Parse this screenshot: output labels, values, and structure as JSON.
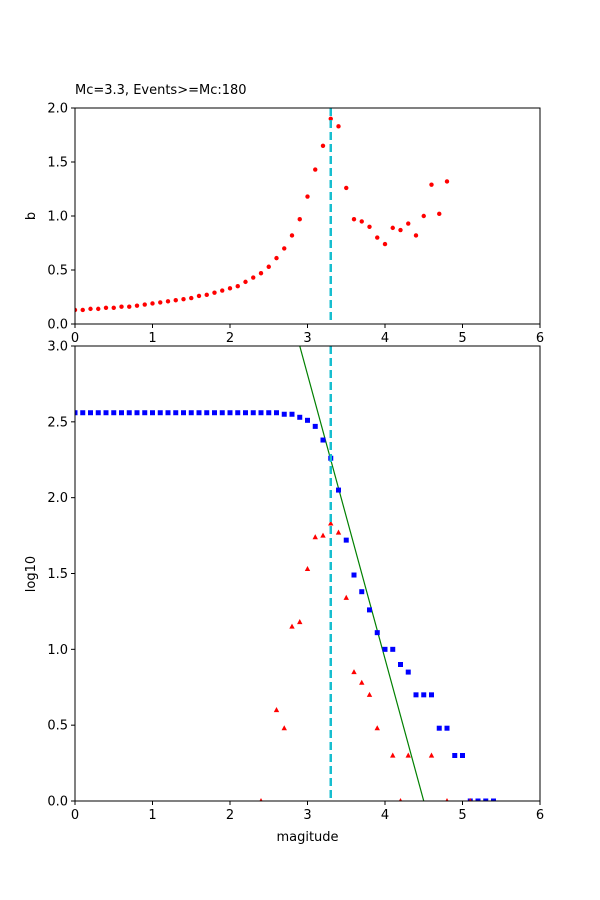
{
  "chart_data": [
    {
      "type": "scatter",
      "title": "Mc=3.3, Events>=Mc:180",
      "xlabel": "",
      "ylabel": "b",
      "xlim": [
        0,
        6
      ],
      "ylim": [
        0,
        2.0
      ],
      "xticks": [
        "0",
        "1",
        "2",
        "3",
        "4",
        "5",
        "6"
      ],
      "yticks": [
        "0.0",
        "0.5",
        "1.0",
        "1.5",
        "2.0"
      ],
      "grid": false,
      "vline": {
        "x": 3.3,
        "color": "#17becf",
        "style": "dashed"
      },
      "series": [
        {
          "marker": "circle",
          "color": "#ff0000",
          "points": [
            [
              0.0,
              0.13
            ],
            [
              0.1,
              0.13
            ],
            [
              0.2,
              0.14
            ],
            [
              0.3,
              0.14
            ],
            [
              0.4,
              0.15
            ],
            [
              0.5,
              0.15
            ],
            [
              0.6,
              0.16
            ],
            [
              0.7,
              0.16
            ],
            [
              0.8,
              0.17
            ],
            [
              0.9,
              0.18
            ],
            [
              1.0,
              0.19
            ],
            [
              1.1,
              0.2
            ],
            [
              1.2,
              0.21
            ],
            [
              1.3,
              0.22
            ],
            [
              1.4,
              0.23
            ],
            [
              1.5,
              0.24
            ],
            [
              1.6,
              0.26
            ],
            [
              1.7,
              0.27
            ],
            [
              1.8,
              0.29
            ],
            [
              1.9,
              0.31
            ],
            [
              2.0,
              0.33
            ],
            [
              2.1,
              0.35
            ],
            [
              2.2,
              0.39
            ],
            [
              2.3,
              0.43
            ],
            [
              2.4,
              0.47
            ],
            [
              2.5,
              0.53
            ],
            [
              2.6,
              0.61
            ],
            [
              2.7,
              0.7
            ],
            [
              2.8,
              0.82
            ],
            [
              2.9,
              0.97
            ],
            [
              3.0,
              1.18
            ],
            [
              3.1,
              1.43
            ],
            [
              3.2,
              1.65
            ],
            [
              3.3,
              1.9
            ],
            [
              3.4,
              1.83
            ],
            [
              3.5,
              1.26
            ],
            [
              3.6,
              0.97
            ],
            [
              3.7,
              0.95
            ],
            [
              3.8,
              0.9
            ],
            [
              3.9,
              0.8
            ],
            [
              4.0,
              0.74
            ],
            [
              4.1,
              0.89
            ],
            [
              4.2,
              0.87
            ],
            [
              4.3,
              0.93
            ],
            [
              4.4,
              0.82
            ],
            [
              4.5,
              1.0
            ],
            [
              4.6,
              1.29
            ],
            [
              4.7,
              1.02
            ],
            [
              4.8,
              1.32
            ]
          ]
        }
      ]
    },
    {
      "type": "scatter",
      "title": "",
      "xlabel": "magitude",
      "ylabel": "log10",
      "xlim": [
        0,
        6
      ],
      "ylim": [
        0,
        3.0
      ],
      "xticks": [
        "0",
        "1",
        "2",
        "3",
        "4",
        "5",
        "6"
      ],
      "yticks": [
        "0.0",
        "0.5",
        "1.0",
        "1.5",
        "2.0",
        "2.5",
        "3.0"
      ],
      "grid": false,
      "vline": {
        "x": 3.3,
        "color": "#17becf",
        "style": "dashed"
      },
      "fit_line": {
        "color": "#008000",
        "points": [
          [
            2.9,
            3.0
          ],
          [
            4.5,
            0.0
          ]
        ]
      },
      "series": [
        {
          "marker": "square",
          "color": "#0000ff",
          "points": [
            [
              0.0,
              2.56
            ],
            [
              0.1,
              2.56
            ],
            [
              0.2,
              2.56
            ],
            [
              0.3,
              2.56
            ],
            [
              0.4,
              2.56
            ],
            [
              0.5,
              2.56
            ],
            [
              0.6,
              2.56
            ],
            [
              0.7,
              2.56
            ],
            [
              0.8,
              2.56
            ],
            [
              0.9,
              2.56
            ],
            [
              1.0,
              2.56
            ],
            [
              1.1,
              2.56
            ],
            [
              1.2,
              2.56
            ],
            [
              1.3,
              2.56
            ],
            [
              1.4,
              2.56
            ],
            [
              1.5,
              2.56
            ],
            [
              1.6,
              2.56
            ],
            [
              1.7,
              2.56
            ],
            [
              1.8,
              2.56
            ],
            [
              1.9,
              2.56
            ],
            [
              2.0,
              2.56
            ],
            [
              2.1,
              2.56
            ],
            [
              2.2,
              2.56
            ],
            [
              2.3,
              2.56
            ],
            [
              2.4,
              2.56
            ],
            [
              2.5,
              2.56
            ],
            [
              2.6,
              2.56
            ],
            [
              2.7,
              2.55
            ],
            [
              2.8,
              2.55
            ],
            [
              2.9,
              2.53
            ],
            [
              3.0,
              2.51
            ],
            [
              3.1,
              2.47
            ],
            [
              3.2,
              2.38
            ],
            [
              3.3,
              2.26
            ],
            [
              3.4,
              2.05
            ],
            [
              3.5,
              1.72
            ],
            [
              3.6,
              1.49
            ],
            [
              3.7,
              1.38
            ],
            [
              3.8,
              1.26
            ],
            [
              3.9,
              1.11
            ],
            [
              4.0,
              1.0
            ],
            [
              4.1,
              1.0
            ],
            [
              4.2,
              0.9
            ],
            [
              4.3,
              0.85
            ],
            [
              4.4,
              0.7
            ],
            [
              4.5,
              0.7
            ],
            [
              4.6,
              0.7
            ],
            [
              4.7,
              0.48
            ],
            [
              4.8,
              0.48
            ],
            [
              4.9,
              0.3
            ],
            [
              5.0,
              0.3
            ],
            [
              5.1,
              0.0
            ],
            [
              5.2,
              0.0
            ],
            [
              5.3,
              0.0
            ],
            [
              5.4,
              0.0
            ]
          ]
        },
        {
          "marker": "triangle",
          "color": "#ff0000",
          "points": [
            [
              2.4,
              0.0
            ],
            [
              2.6,
              0.6
            ],
            [
              2.7,
              0.48
            ],
            [
              2.8,
              1.15
            ],
            [
              2.9,
              1.18
            ],
            [
              3.0,
              1.53
            ],
            [
              3.1,
              1.74
            ],
            [
              3.2,
              1.75
            ],
            [
              3.3,
              1.83
            ],
            [
              3.4,
              1.77
            ],
            [
              3.5,
              1.34
            ],
            [
              3.6,
              0.85
            ],
            [
              3.7,
              0.78
            ],
            [
              3.8,
              0.7
            ],
            [
              3.9,
              0.48
            ],
            [
              4.1,
              0.3
            ],
            [
              4.2,
              0.0
            ],
            [
              4.3,
              0.3
            ],
            [
              4.6,
              0.3
            ],
            [
              4.8,
              0.0
            ],
            [
              5.1,
              0.0
            ]
          ]
        }
      ]
    }
  ]
}
